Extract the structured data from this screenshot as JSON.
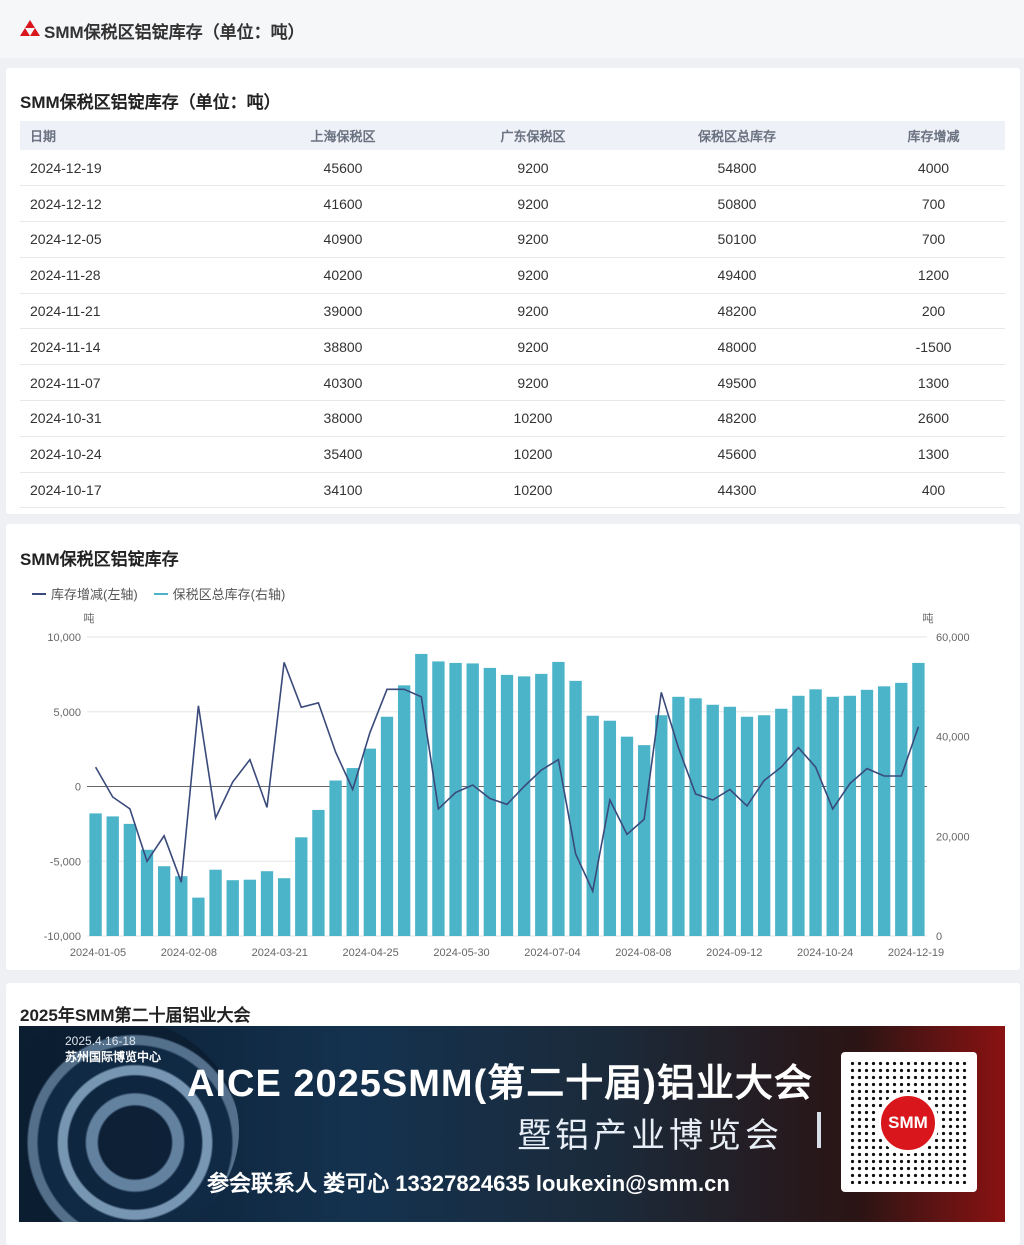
{
  "header": {
    "title": "SMM保税区铝锭库存（单位：吨）",
    "logo_icon": "smm-logo-icon",
    "logo_color": "#d9161b"
  },
  "table_card": {
    "title": "SMM保税区铝锭库存（单位：吨）",
    "columns": [
      "日期",
      "上海保税区",
      "广东保税区",
      "保税区总库存",
      "库存增减"
    ],
    "rows": [
      [
        "2024-12-19",
        "45600",
        "9200",
        "54800",
        "4000"
      ],
      [
        "2024-12-12",
        "41600",
        "9200",
        "50800",
        "700"
      ],
      [
        "2024-12-05",
        "40900",
        "9200",
        "50100",
        "700"
      ],
      [
        "2024-11-28",
        "40200",
        "9200",
        "49400",
        "1200"
      ],
      [
        "2024-11-21",
        "39000",
        "9200",
        "48200",
        "200"
      ],
      [
        "2024-11-14",
        "38800",
        "9200",
        "48000",
        "-1500"
      ],
      [
        "2024-11-07",
        "40300",
        "9200",
        "49500",
        "1300"
      ],
      [
        "2024-10-31",
        "38000",
        "10200",
        "48200",
        "2600"
      ],
      [
        "2024-10-24",
        "35400",
        "10200",
        "45600",
        "1300"
      ],
      [
        "2024-10-17",
        "34100",
        "10200",
        "44300",
        "400"
      ]
    ]
  },
  "chart_card": {
    "title": "SMM保税区铝锭库存"
  },
  "chart_data": {
    "type": "bar",
    "title": "SMM保税区铝锭库存",
    "legend": [
      "库存增减(左轴)",
      "保税区总库存(右轴)"
    ],
    "legend_position": "top-left",
    "left_axis_unit": "吨",
    "right_axis_unit": "吨",
    "left_ylim": [
      -10000,
      10000
    ],
    "left_ticks": [
      "10,000",
      "5,000",
      "0",
      "-5,000",
      "-10,000"
    ],
    "right_ylim": [
      0,
      60000
    ],
    "right_ticks": [
      "60,000",
      "40,000",
      "20,000",
      "0"
    ],
    "x_tick_labels": [
      "2024-01-05",
      "2024-02-08",
      "2024-03-21",
      "2024-04-25",
      "2024-05-30",
      "2024-07-04",
      "2024-08-08",
      "2024-09-12",
      "2024-10-24",
      "2024-12-19"
    ],
    "colors": {
      "bar": "#4bb4c8",
      "line": "#3a4a7a"
    },
    "series": [
      {
        "name": "保税区总库存(右轴)",
        "kind": "bar",
        "axis": "right",
        "values": [
          24600,
          24000,
          22500,
          17300,
          14000,
          12000,
          7700,
          13300,
          11200,
          11300,
          13000,
          11600,
          19800,
          25300,
          31200,
          33700,
          37600,
          44000,
          50300,
          56600,
          55100,
          54800,
          54700,
          53800,
          52400,
          52100,
          52600,
          55000,
          51200,
          44200,
          43200,
          40000,
          38300,
          44300,
          48000,
          47700,
          46400,
          46000,
          44000,
          44300,
          45600,
          48200,
          49500,
          48000,
          48200,
          49400,
          50100,
          50800,
          54800
        ]
      },
      {
        "name": "库存增减(左轴)",
        "kind": "line",
        "axis": "left",
        "values": [
          1300,
          -700,
          -1500,
          -5000,
          -3300,
          -6400,
          5400,
          -2100,
          300,
          1800,
          -1400,
          8300,
          5300,
          5600,
          2300,
          -200,
          3600,
          6500,
          6500,
          6000,
          -1500,
          -400,
          100,
          -800,
          -1200,
          0,
          1100,
          1800,
          -4500,
          -7000,
          -900,
          -3200,
          -2200,
          6300,
          2600,
          -500,
          -900,
          -200,
          -1300,
          400,
          1300,
          2600,
          1300,
          -1500,
          200,
          1200,
          700,
          700,
          4000
        ]
      }
    ]
  },
  "banner_card": {
    "title": "2025年SMM第二十届铝业大会",
    "date": "2025.4.16-18",
    "venue": "苏州国际博览中心",
    "headline": "AICE 2025SMM(第二十届)铝业大会",
    "subline": "暨铝产业博览会",
    "contact": "参会联系人   娄可心 13327824635   loukexin@smm.cn",
    "qr_label": "SMM"
  }
}
